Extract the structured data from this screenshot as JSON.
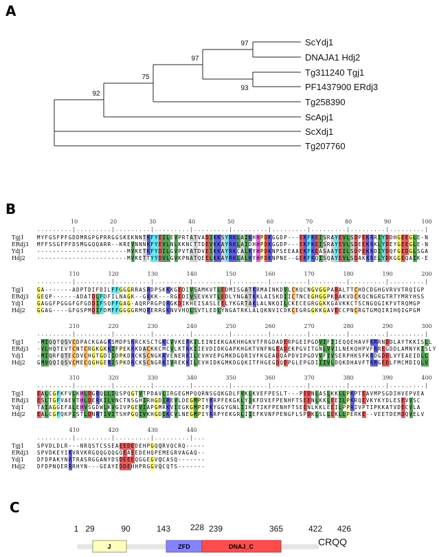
{
  "panels": {
    "a": "A",
    "b": "B",
    "c": "C"
  },
  "tree": {
    "leaves": [
      "ScYdj1",
      "DNAJA1 Hdj2",
      "Tg311240 Tgj1",
      "PF1437900 ERdj3",
      "Tg258390",
      "ScApj1",
      "ScXdj1",
      "Tg207760"
    ],
    "bootstrap": {
      "ydj1_hdj2": "97",
      "clade_a1": "97",
      "tgj1_erdj3": "93",
      "with_tg258390": "75",
      "with_scapj1": "92"
    }
  },
  "alignment": {
    "names": [
      "Tgj1",
      "ERdj3",
      "Ydj1",
      "Hdj2"
    ],
    "block_size": 100,
    "total_length": 443,
    "blocks": [
      [
        "MYFGSFPFGDDMRGPGPRRGGSKEKNNTKFYEILEVPRTATVADIKKSYRKLAIKHHPDKGGDP---EKFKEISRAYEVLSDPEKRRIYDDHGEEGLE-N",
        "MFFSSGFPFDSMGGQQARR--KREVNNNKFYEVLNLKKNCTTDEVKKAYRKLAIDHHPDKGGDP---EKFKEISRAYEVLSDEEKRKLYDEYGEEGLE-N",
        "-----------------------MVKETKFYDILGVPVTATDVEIKKAYRKCALKYHPDKNPSEEAAEKFKEASAAYEILSDPEKRDIYDQFGEDGLSGA",
        "-----------------------MVKETTYYDVLGVKPNATQEELKKAYRKLALKYHPDKNPNE--GEKFKQISQAYEVLSDAKKRELYDKGGEQAIK-E"
      ],
      [
        "GA-------ADPTDIFDILFFGGGRRASRDPSKKKGEDIVSAMKVTLEDMISGATKRMAINKDVLCKQCNGVGGPADALTTCHDCDGHGVRVVTRQIGP",
        "GEQP------ADATDLFDFILNAGK--GKKK---RGEDIVSEVKVTLEDLYNGATKKLAISKDIICTNCEGHGGPKDAKVDCKQCNGRGTRTYMRYHSS",
        "GAGGFPGGGFGFGDDIFSQFFGAG-AQRPRGPQRGKDIKHEISASLEELYKGRTAKLALNKQILCKECEGRGGKKGAVKKCTSCNGQGIKFVTRQMGP",
        "GGAG----GFGSPMDIFDMFFGGGGRMQRERRGKNVVHQLSVTLEDLYNGATRKLALQKNVICDKCEGRGGKKGAVECCPNCRGTGMQIRIHQIGPGM"
      ],
      [
        "-MIQQTQSVCDPACKGAGKSMDPSKRCKSCTGKCVVKERKILEINIEKGAKHHGKVTFRGDADERPGEIPGDVIFIIEQQEHAVFKRRNDDLAYTKKISLL",
        "-VLHQTEVTCNTCRGKGKKIFPEKRKDACKKCMCVLKTRKIIEVDIDKGAPKHGKTVNFNGEADEKPGVITGNLVVILNEKQHPVFRREGDDLAMNYKISLY",
        "-MIQRFQTECDVCHGTGDIIDPKDRCKSCNGKKVENERKILEVHVEPGMKDGQRIVFKGEADQAPDVIPGDVVFIVSERPHKSFKRDGDDLVYEAEIDLL",
        "GMVQQIQSVCMECQGHGERISPKDRCKSCNGRKIVREKKILEVHIDKGMKDGQKITFHGEGDQEPGLEPGDIIIVLDQKDHAVFTRRGEDLFMCMDIQLV"
      ],
      [
        "EALCGFKFVLKHLDGRQLLIQSPQGTVTPDAVLIRGEGMPQQRNSGQKGDLFVKLKVEFPESLT---PEDNLASLKKLLPKPTEAVMPSGDIHVEPVEA",
        "ESLTGFVAEVTHLDERKILVNCTNSGHIRHGDIREVLDEGMPTYKRPFEKGKLYIKFDVEFPENHFTSEENLKKLEEILPKRQEVKYKYDLESEVVSC",
        "TAIAGGEFALEHVSGDWLKVGIVPGEVIAPGMRKVIEGKGMPIPKYGGYGNLIIKFTIKFPENHFTSEENLKKLEEILPPRIVPTIPKKATVDECVLA",
        "EALCGFQKPISTLDNRTIVITSHPGQIVKHGDIKCVLNEGMPIYRRPYEKGRLIIEFKVNFPENGFLSPDKLSLLEKLLPERKE--VEETDEMDQVELV"
      ],
      [
        "SPVDLDLR---NRQSTCSSEAEEDEDEHPGQQRVQCRQ-----",
        "SPVDKEYIKVRVKRGQQGQQGQEAEEDEHQPEMEGRVAGAQ--",
        "DFDPAKYNRTRASRGGANYDSDEEEQGGEGVQCASQ-------",
        "DFDPNQERRRHYN---GEAYEDDEHHPRGGVQCQTS-------"
      ]
    ],
    "residue_colors": {
      "KR": "#1c1cd8",
      "DE": "#e01818",
      "ILVM": "#0a7a0a",
      "FYW": "#20e0f0",
      "G": "#ffff30",
      "H": "#e020e0",
      "AST": "#c0c0c0",
      "NQ": "#d8d8d8",
      "P": "#ffff90",
      "C": "#ff9f20"
    }
  },
  "domain_map": {
    "positions": [
      "1",
      "29",
      "90",
      "143",
      "228",
      "239",
      "365",
      "422",
      "426"
    ],
    "domains": [
      {
        "label": "J",
        "start": 29,
        "end": 90,
        "color": "#ffffc0"
      },
      {
        "label": "ZFD",
        "start": 143,
        "end": 228,
        "color": "#8484ff"
      },
      {
        "label": "DNAJ_C",
        "start": 228,
        "end": 365,
        "color": "#ff4d4d"
      }
    ],
    "motif": "CRQQ"
  }
}
